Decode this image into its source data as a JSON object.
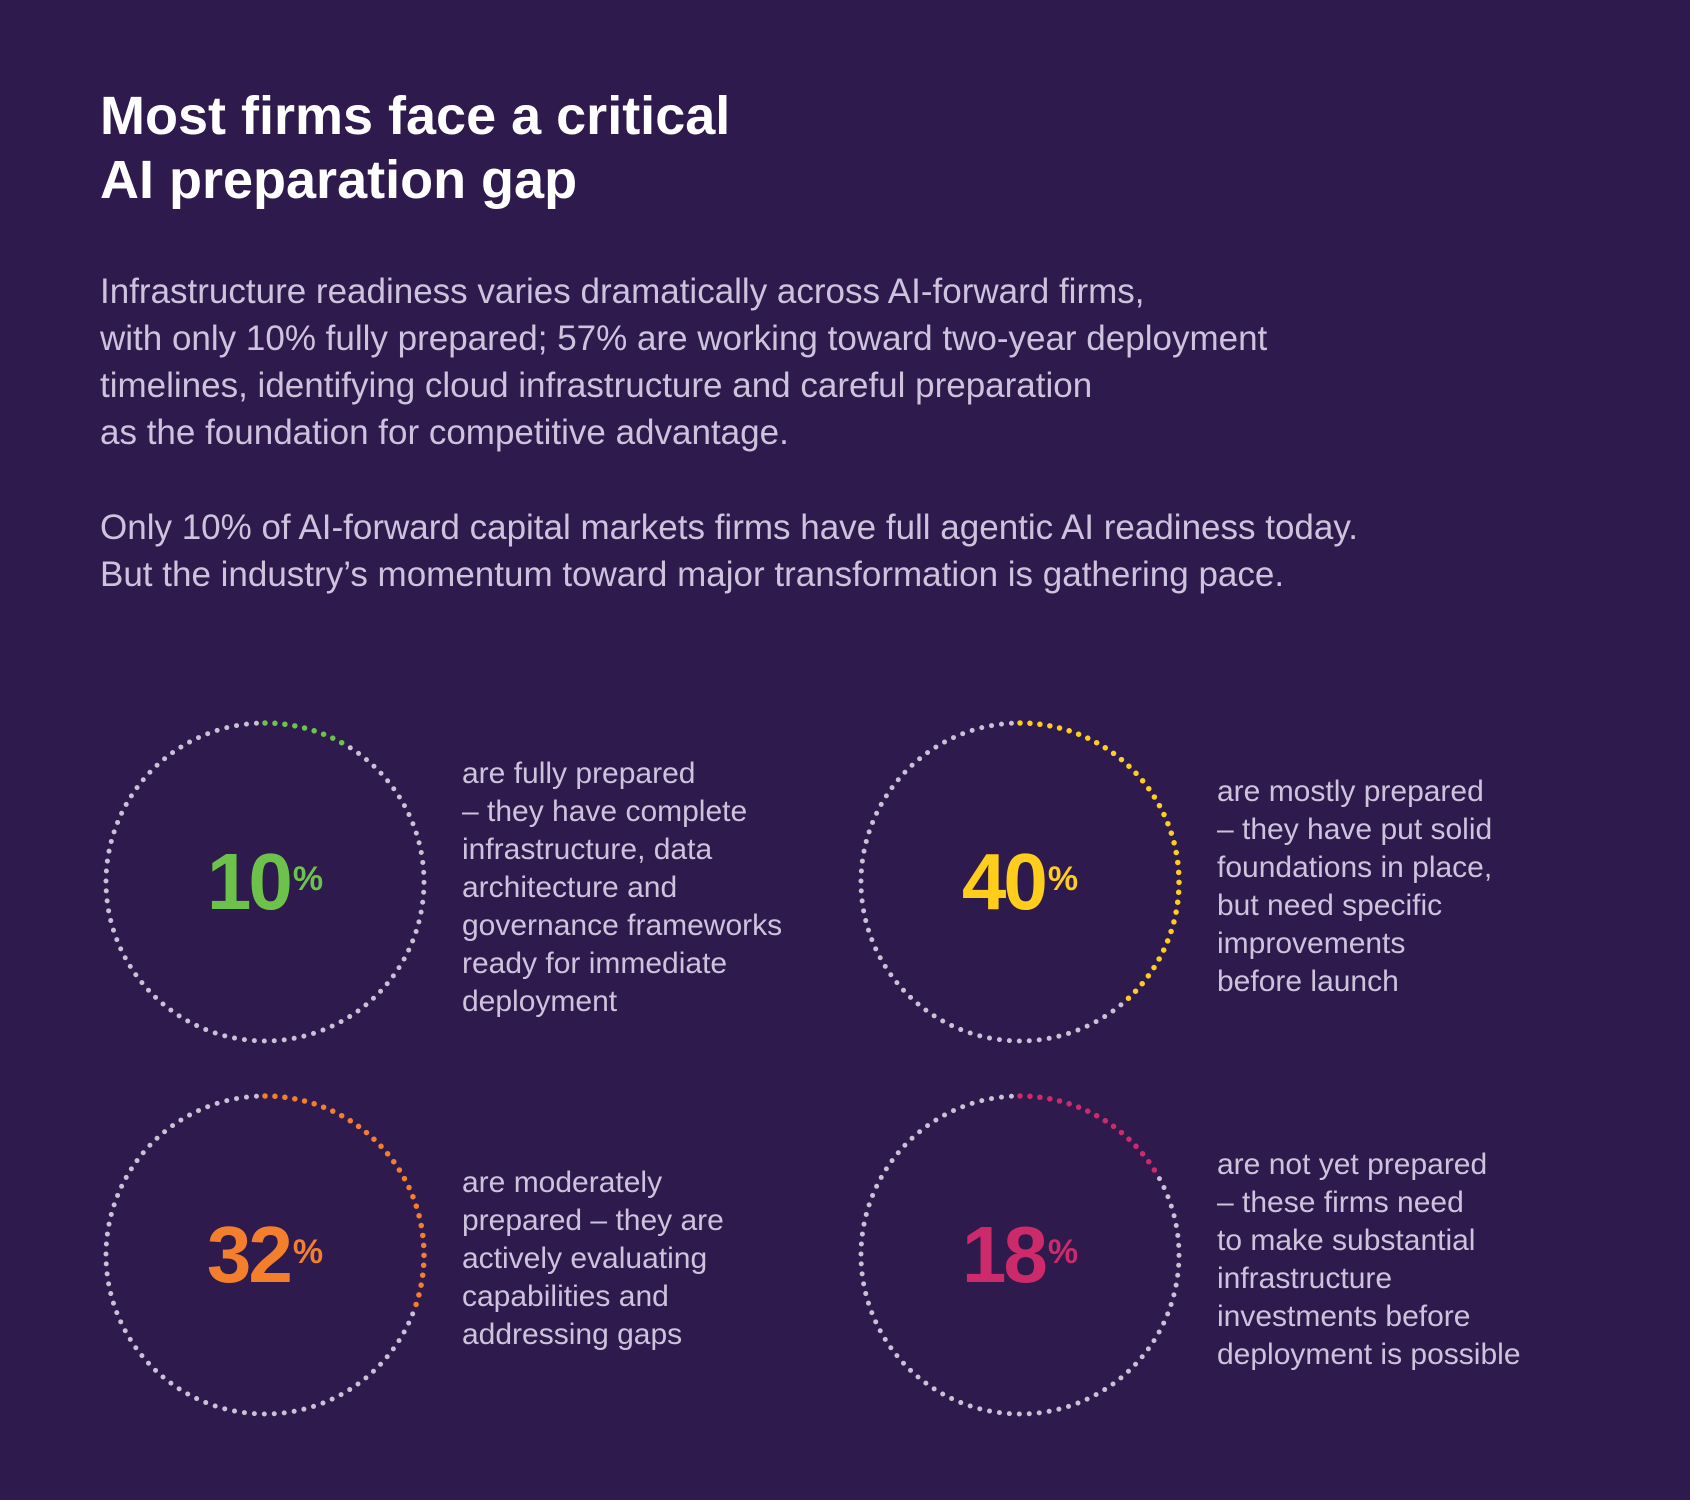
{
  "title_lines": [
    "Most firms face a critical",
    "AI preparation gap"
  ],
  "intro_paragraph_1": [
    "Infrastructure readiness varies dramatically across AI-forward firms,",
    "with only 10% fully prepared; 57% are working toward two-year deployment",
    "timelines, identifying cloud infrastructure and careful preparation",
    "as the foundation for competitive advantage."
  ],
  "intro_paragraph_2": [
    "Only 10% of AI-forward capital markets firms have full agentic AI readiness today.",
    "But the industry’s momentum toward major transformation is gathering pace."
  ],
  "colors": {
    "background": "#2e1a4c",
    "ring_base": "#c9c2d6",
    "green": "#6cc24a",
    "yellow": "#ffcd1c",
    "orange": "#f37f2c",
    "magenta": "#cc2a6b"
  },
  "chart_data": {
    "type": "radial-progress",
    "unit": "%",
    "items": [
      {
        "value": 10,
        "value_text": "10",
        "symbol": "%",
        "color": "#6cc24a",
        "label": "are fully prepared",
        "description_lines": [
          "are fully prepared",
          "– they have complete",
          "infrastructure, data",
          "architecture and",
          "governance frameworks",
          "ready for immediate",
          "deployment"
        ]
      },
      {
        "value": 40,
        "value_text": "40",
        "symbol": "%",
        "color": "#ffcd1c",
        "label": "are mostly prepared",
        "description_lines": [
          "are mostly prepared",
          "– they have put solid",
          "foundations in place,",
          "but need specific",
          "improvements",
          "before launch"
        ]
      },
      {
        "value": 32,
        "value_text": "32",
        "symbol": "%",
        "color": "#f37f2c",
        "label": "are moderately prepared",
        "description_lines": [
          "are moderately",
          "prepared – they are",
          "actively evaluating",
          "capabilities and",
          "addressing gaps"
        ]
      },
      {
        "value": 18,
        "value_text": "18",
        "symbol": "%",
        "color": "#cc2a6b",
        "label": "are not yet prepared",
        "description_lines": [
          "are not yet prepared",
          "– these firms need",
          "to make substantial",
          "infrastructure",
          "investments before",
          "deployment is possible"
        ]
      }
    ]
  }
}
